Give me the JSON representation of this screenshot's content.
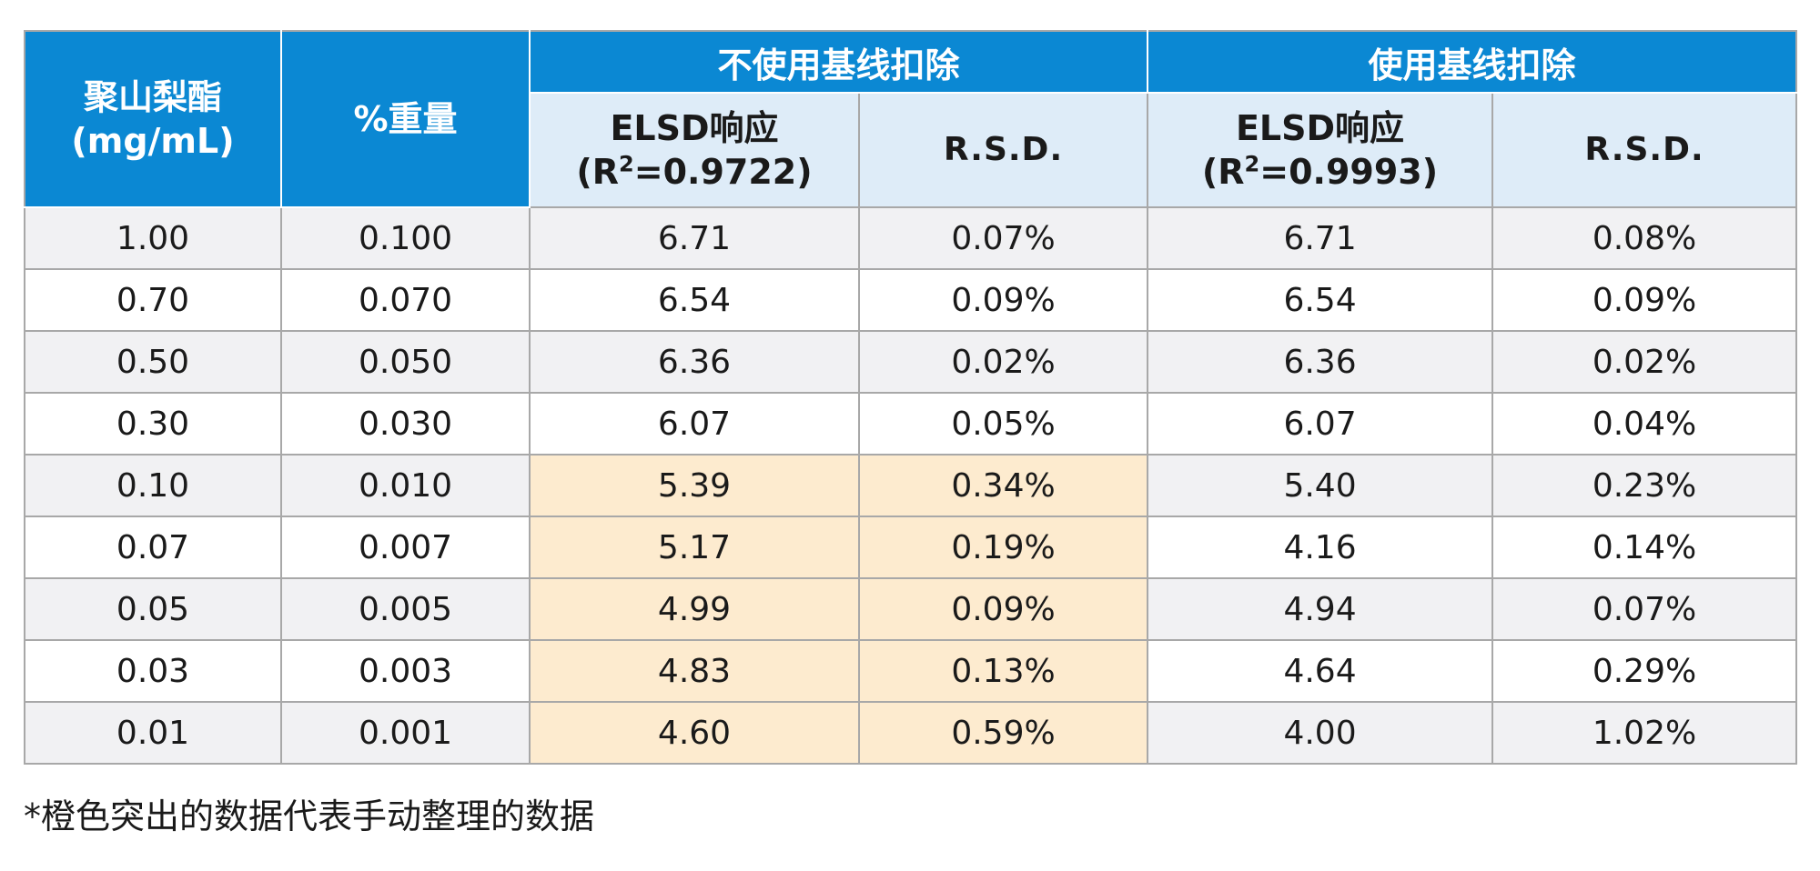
{
  "header": {
    "col1_line1": "聚山梨酯",
    "col1_line2": "(mg/mL)",
    "col2": "%重量",
    "group1": "不使用基线扣除",
    "group2": "使用基线扣除",
    "elsd_label": "ELSD响应",
    "r2_prefix": "(R",
    "r2_sup": "2",
    "group1_r2_value": "=0.9722)",
    "group2_r2_value": "=0.9993)",
    "rsd": "R.S.D."
  },
  "rows": [
    {
      "conc": "1.00",
      "wt": "0.100",
      "g1_elsd": "6.71",
      "g1_rsd": "0.07%",
      "g2_elsd": "6.71",
      "g2_rsd": "0.08%",
      "highlight": false
    },
    {
      "conc": "0.70",
      "wt": "0.070",
      "g1_elsd": "6.54",
      "g1_rsd": "0.09%",
      "g2_elsd": "6.54",
      "g2_rsd": "0.09%",
      "highlight": false
    },
    {
      "conc": "0.50",
      "wt": "0.050",
      "g1_elsd": "6.36",
      "g1_rsd": "0.02%",
      "g2_elsd": "6.36",
      "g2_rsd": "0.02%",
      "highlight": false
    },
    {
      "conc": "0.30",
      "wt": "0.030",
      "g1_elsd": "6.07",
      "g1_rsd": "0.05%",
      "g2_elsd": "6.07",
      "g2_rsd": "0.04%",
      "highlight": false
    },
    {
      "conc": "0.10",
      "wt": "0.010",
      "g1_elsd": "5.39",
      "g1_rsd": "0.34%",
      "g2_elsd": "5.40",
      "g2_rsd": "0.23%",
      "highlight": true
    },
    {
      "conc": "0.07",
      "wt": "0.007",
      "g1_elsd": "5.17",
      "g1_rsd": "0.19%",
      "g2_elsd": "4.16",
      "g2_rsd": "0.14%",
      "highlight": true
    },
    {
      "conc": "0.05",
      "wt": "0.005",
      "g1_elsd": "4.99",
      "g1_rsd": "0.09%",
      "g2_elsd": "4.94",
      "g2_rsd": "0.07%",
      "highlight": true
    },
    {
      "conc": "0.03",
      "wt": "0.003",
      "g1_elsd": "4.83",
      "g1_rsd": "0.13%",
      "g2_elsd": "4.64",
      "g2_rsd": "0.29%",
      "highlight": true
    },
    {
      "conc": "0.01",
      "wt": "0.001",
      "g1_elsd": "4.60",
      "g1_rsd": "0.59%",
      "g2_elsd": "4.00",
      "g2_rsd": "1.02%",
      "highlight": true
    }
  ],
  "colors": {
    "header_blue": "#0b88d3",
    "subheader_light_blue": "#deecf8",
    "highlight_orange": "#fdebcf",
    "row_stripe": "#f1f1f3"
  },
  "footnote": "*橙色突出的数据代表手动整理的数据"
}
